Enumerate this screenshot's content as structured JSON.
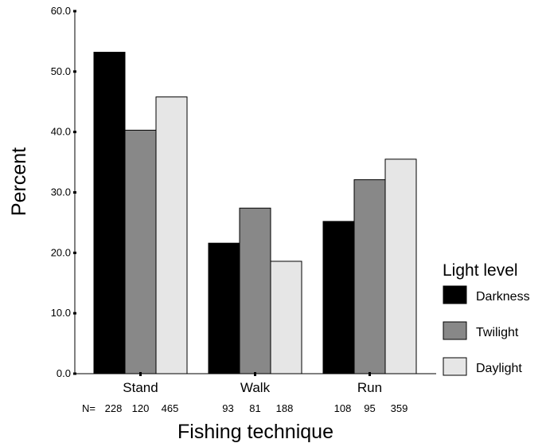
{
  "chart_data": {
    "type": "bar",
    "categories": [
      "Stand",
      "Walk",
      "Run"
    ],
    "series": [
      {
        "name": "Darkness",
        "values": [
          53.2,
          21.6,
          25.2
        ],
        "color": "#000000"
      },
      {
        "name": "Twilight",
        "values": [
          40.3,
          27.4,
          32.1
        ],
        "color": "#888888"
      },
      {
        "name": "Daylight",
        "values": [
          45.8,
          18.6,
          35.5
        ],
        "color": "#e6e6e6"
      }
    ],
    "n_prefix": "N=",
    "n_values": [
      [
        228,
        120,
        465
      ],
      [
        93,
        81,
        188
      ],
      [
        108,
        95,
        359
      ]
    ],
    "xlabel": "Fishing technique",
    "ylabel": "Percent",
    "ylim": [
      0,
      60
    ],
    "yticks": [
      "0.0",
      "10.0",
      "20.0",
      "30.0",
      "40.0",
      "50.0",
      "60.0"
    ],
    "legend_title": "Light level",
    "legend_position": "right",
    "grid": false
  }
}
